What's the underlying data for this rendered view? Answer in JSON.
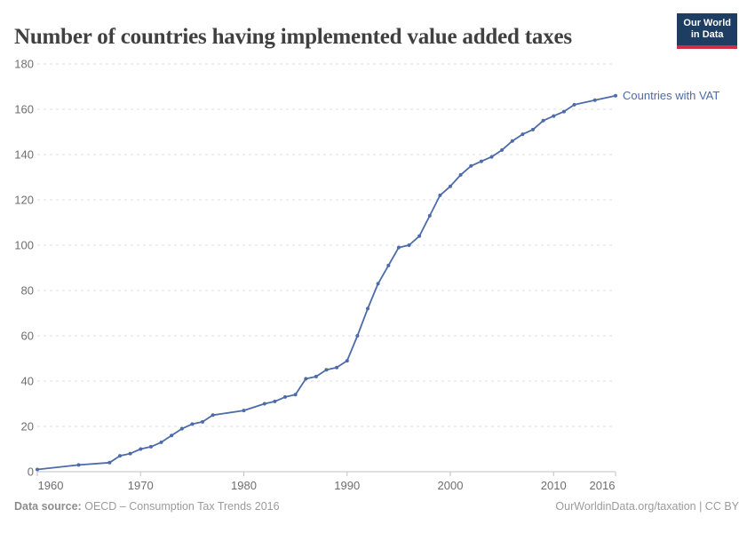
{
  "header": {
    "title": "Number of countries having implemented value added taxes",
    "logo": {
      "line1": "Our World",
      "line2": "in Data"
    }
  },
  "legend": {
    "label": "Countries with VAT"
  },
  "footer": {
    "source_label": "Data source:",
    "source_value": "OECD – Consumption Tax Trends 2016",
    "credit": "OurWorldinData.org/taxation | CC BY"
  },
  "colors": {
    "line": "#4c6ba9",
    "grid": "#dcdcdc",
    "axis": "#c2c2c2",
    "tick_label": "#6e6e6e",
    "logo_bg": "#1d3d63",
    "logo_accent": "#ce2e3f"
  },
  "chart_data": {
    "type": "line",
    "title": "Number of countries having implemented value added taxes",
    "xlabel": "",
    "ylabel": "",
    "xlim": [
      1960,
      2016
    ],
    "ylim": [
      0,
      180
    ],
    "x_ticks": [
      1960,
      1970,
      1980,
      1990,
      2000,
      2010,
      2016
    ],
    "y_ticks": [
      0,
      20,
      40,
      60,
      80,
      100,
      120,
      140,
      160,
      180
    ],
    "grid": "horizontal-dashed",
    "legend_position": "right-of-line-end",
    "marker": "point",
    "series": [
      {
        "name": "Countries with VAT",
        "points": [
          [
            1960,
            1
          ],
          [
            1964,
            3
          ],
          [
            1967,
            4
          ],
          [
            1968,
            7
          ],
          [
            1969,
            8
          ],
          [
            1970,
            10
          ],
          [
            1971,
            11
          ],
          [
            1972,
            13
          ],
          [
            1973,
            16
          ],
          [
            1974,
            19
          ],
          [
            1975,
            21
          ],
          [
            1976,
            22
          ],
          [
            1977,
            25
          ],
          [
            1980,
            27
          ],
          [
            1982,
            30
          ],
          [
            1983,
            31
          ],
          [
            1984,
            33
          ],
          [
            1985,
            34
          ],
          [
            1986,
            41
          ],
          [
            1987,
            42
          ],
          [
            1988,
            45
          ],
          [
            1989,
            46
          ],
          [
            1990,
            49
          ],
          [
            1991,
            60
          ],
          [
            1992,
            72
          ],
          [
            1993,
            83
          ],
          [
            1994,
            91
          ],
          [
            1995,
            99
          ],
          [
            1996,
            100
          ],
          [
            1997,
            104
          ],
          [
            1998,
            113
          ],
          [
            1999,
            122
          ],
          [
            2000,
            126
          ],
          [
            2001,
            131
          ],
          [
            2002,
            135
          ],
          [
            2003,
            137
          ],
          [
            2004,
            139
          ],
          [
            2005,
            142
          ],
          [
            2006,
            146
          ],
          [
            2007,
            149
          ],
          [
            2008,
            151
          ],
          [
            2009,
            155
          ],
          [
            2010,
            157
          ],
          [
            2011,
            159
          ],
          [
            2012,
            162
          ],
          [
            2014,
            164
          ],
          [
            2016,
            166
          ]
        ]
      }
    ]
  }
}
